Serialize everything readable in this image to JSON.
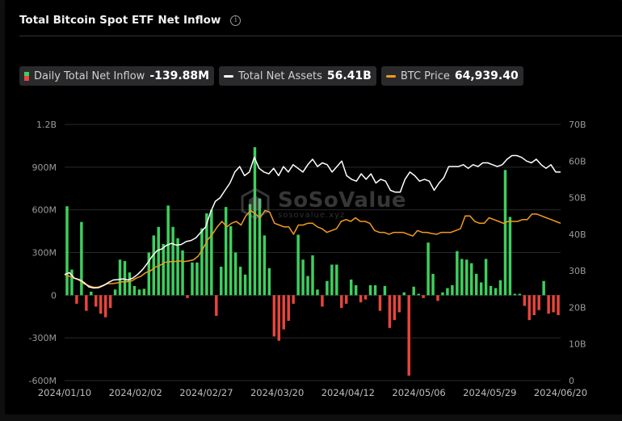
{
  "header": {
    "title": "Total Bitcoin Spot ETF Net Inflow",
    "info_icon": "info-circle-icon"
  },
  "legend": [
    {
      "label": "Daily Total Net Inflow",
      "value": "-139.88M",
      "swatch": "bar"
    },
    {
      "label": "Total Net Assets",
      "value": "56.41B",
      "color": "#ffffff"
    },
    {
      "label": "BTC Price",
      "value": "64,939.40",
      "color": "#f39a1e"
    }
  ],
  "watermark": {
    "brand": "SoSoValue",
    "url": "sosovalue.xyz"
  },
  "colors": {
    "positive": "#3ecf5e",
    "negative": "#e8453c",
    "assets": "#ffffff",
    "price": "#f39a1e",
    "grid": "#2a2a2a"
  },
  "chart_data": {
    "type": "bar",
    "title": "Total Bitcoin Spot ETF Net Inflow",
    "grid": true,
    "legend_position": "top-left",
    "x_tick_labels": [
      "2024/01/10",
      "2024/02/02",
      "2024/02/27",
      "2024/03/20",
      "2024/04/12",
      "2024/05/06",
      "2024/05/29",
      "2024/06/20"
    ],
    "y_left": {
      "ticks": [
        "1.2B",
        "900M",
        "600M",
        "300M",
        "0",
        "-300M",
        "-600M"
      ],
      "ylim": [
        -600,
        1200
      ],
      "unit": "M"
    },
    "y_right": {
      "ticks": [
        "70B",
        "60B",
        "50B",
        "40B",
        "30B",
        "20B",
        "10B",
        "0"
      ],
      "ylim": [
        0,
        70
      ],
      "unit": "B"
    },
    "series": [
      {
        "name": "Daily Total Net Inflow",
        "kind": "bar",
        "values": [
          625,
          180,
          -60,
          515,
          -110,
          25,
          -80,
          -130,
          -155,
          -90,
          40,
          250,
          240,
          160,
          65,
          40,
          45,
          300,
          420,
          480,
          360,
          630,
          480,
          400,
          315,
          -20,
          230,
          230,
          470,
          575,
          600,
          -145,
          200,
          620,
          485,
          300,
          200,
          145,
          640,
          1040,
          680,
          420,
          190,
          -290,
          -320,
          -240,
          -180,
          -60,
          425,
          250,
          135,
          280,
          40,
          -80,
          100,
          215,
          215,
          -90,
          -60,
          110,
          70,
          -50,
          -30,
          70,
          70,
          -110,
          65,
          -230,
          -175,
          -120,
          20,
          -565,
          60,
          10,
          -20,
          370,
          150,
          -40,
          20,
          50,
          70,
          310,
          255,
          250,
          225,
          150,
          90,
          255,
          65,
          50,
          105,
          880,
          550,
          10,
          10,
          -75,
          -175,
          -140,
          -105,
          100,
          -130,
          -120,
          -140
        ]
      },
      {
        "name": "Total Net Assets",
        "kind": "line",
        "axis": "right",
        "values": [
          29,
          29.5,
          28,
          27.6,
          26.8,
          25.6,
          25.3,
          25.4,
          26,
          26.8,
          27.5,
          27.6,
          27.8,
          27.5,
          28,
          29,
          30.3,
          32,
          34,
          35.5,
          36,
          37,
          37.5,
          37,
          37.2,
          38,
          38.3,
          39,
          40.5,
          42,
          46,
          49,
          50,
          52,
          54,
          57,
          58.5,
          56,
          57,
          61,
          58,
          57,
          56.5,
          58,
          56,
          58.5,
          57,
          59,
          58,
          57,
          59,
          60.5,
          58.5,
          59.5,
          59,
          57,
          58.5,
          60,
          56,
          55,
          54.5,
          56.5,
          55,
          56.5,
          54,
          55,
          54.5,
          52,
          51.5,
          51.5,
          55,
          57,
          56,
          54.5,
          55,
          54.5,
          52,
          54,
          55.5,
          58.5,
          58.5,
          58.5,
          59,
          58,
          59,
          58.5,
          59.5,
          59.5,
          59,
          58.5,
          59,
          60.5,
          61.5,
          61.5,
          61,
          60,
          59.5,
          60.5,
          59,
          58,
          59,
          57,
          57
        ]
      },
      {
        "name": "BTC Price",
        "kind": "line",
        "axis": "right",
        "values": [
          29,
          28.5,
          28,
          27.5,
          26.5,
          26,
          25.5,
          25.5,
          26,
          26.5,
          26.5,
          26.7,
          27,
          27,
          27.2,
          28,
          28.5,
          29.5,
          30,
          31,
          31.5,
          32.3,
          32.5,
          32.5,
          32.7,
          32.5,
          32.7,
          33,
          34,
          36,
          38.5,
          40,
          42,
          43.5,
          42,
          43,
          43.5,
          42.5,
          45,
          46.5,
          45.5,
          44.5,
          46.5,
          46,
          43,
          42.5,
          42,
          42,
          40,
          42.5,
          42.5,
          43,
          43,
          42,
          41.5,
          40.5,
          41,
          41.5,
          43.5,
          44,
          43.5,
          44.5,
          43.5,
          43.5,
          43,
          41,
          40.5,
          40.5,
          40,
          40.5,
          40.5,
          40.5,
          40,
          39.5,
          41,
          40.5,
          40.5,
          40.2,
          40,
          40.5,
          40.5,
          40.5,
          41,
          41.5,
          45,
          45,
          43.5,
          43,
          43,
          44.5,
          44,
          43.5,
          43,
          43.5,
          43.5,
          43.5,
          44,
          44,
          45.5,
          45.5,
          45,
          44.5,
          44,
          43.5,
          43
        ]
      }
    ]
  }
}
